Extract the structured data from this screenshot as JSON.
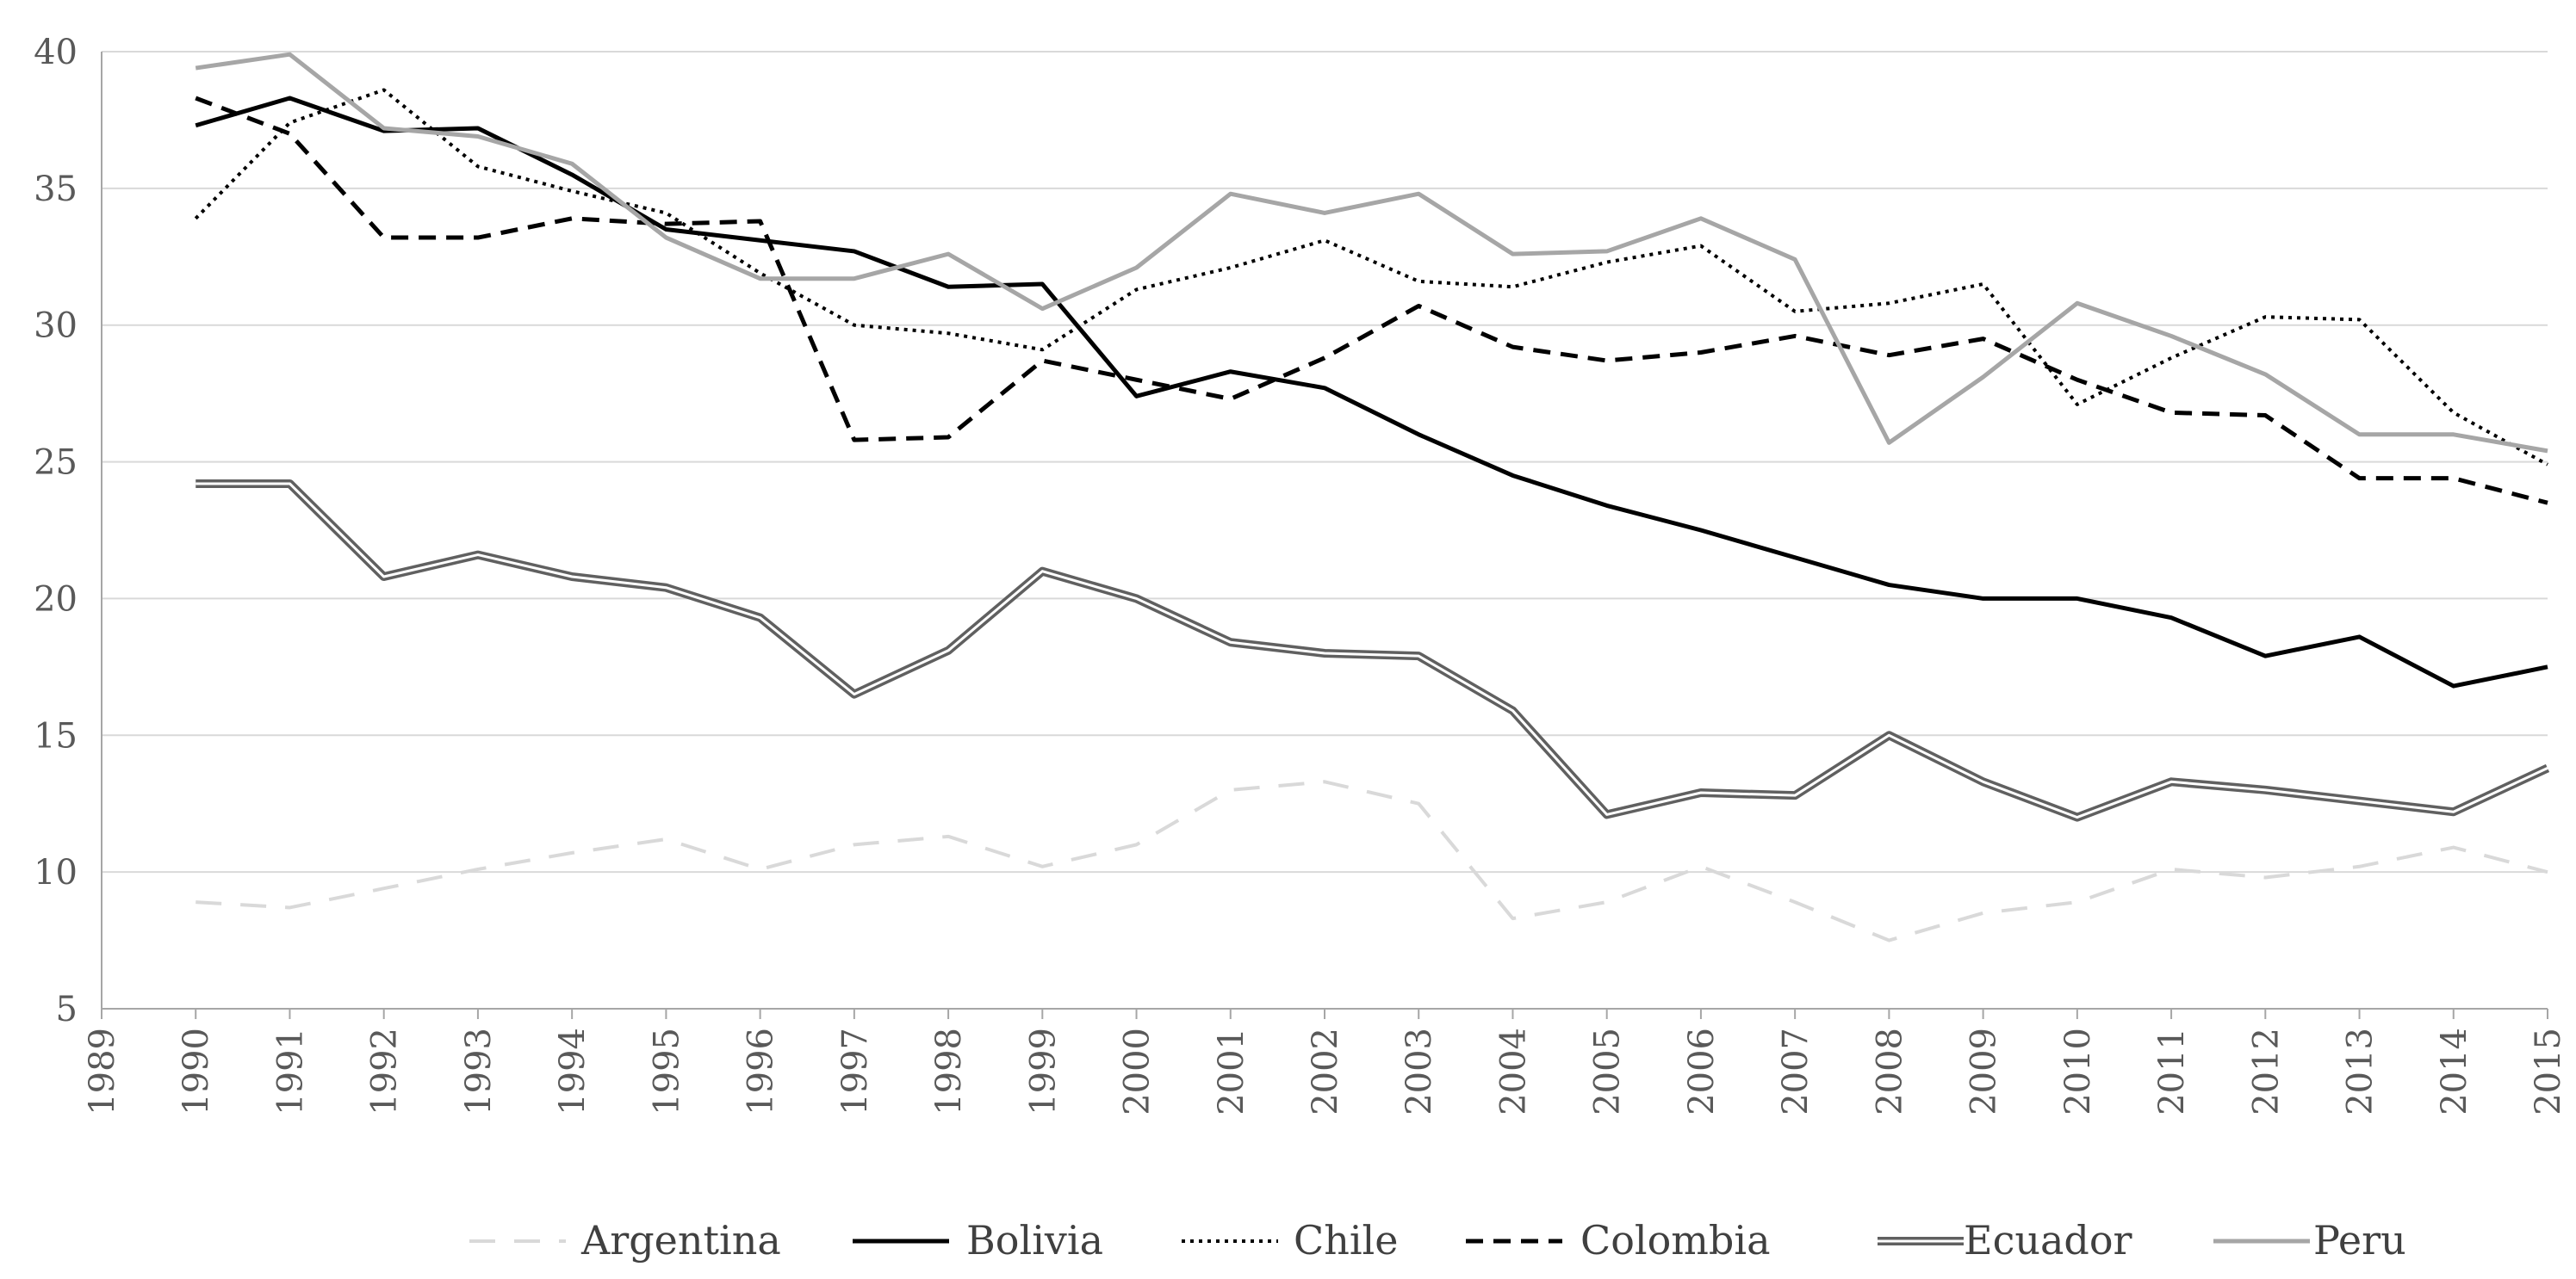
{
  "chart_data": {
    "type": "line",
    "title": "",
    "xlabel": "",
    "ylabel": "",
    "x": [
      1990,
      1991,
      1992,
      1993,
      1994,
      1995,
      1996,
      1997,
      1998,
      1999,
      2000,
      2001,
      2002,
      2003,
      2004,
      2005,
      2006,
      2007,
      2008,
      2009,
      2010,
      2011,
      2012,
      2013,
      2014,
      2015
    ],
    "xlim": [
      1989,
      2015
    ],
    "ylim": [
      5,
      40
    ],
    "x_tick_labels": [
      "1989",
      "1990",
      "1991",
      "1992",
      "1993",
      "1994",
      "1995",
      "1996",
      "1997",
      "1998",
      "1999",
      "2000",
      "2001",
      "2002",
      "2003",
      "2004",
      "2005",
      "2006",
      "2007",
      "2008",
      "2009",
      "2010",
      "2011",
      "2012",
      "2013",
      "2014",
      "2015"
    ],
    "y_tick_labels": [
      "5",
      "10",
      "15",
      "20",
      "25",
      "30",
      "35",
      "40"
    ],
    "grid": "horizontal",
    "legend_position": "bottom",
    "series": [
      {
        "name": "Argentina",
        "color": "#d9d9d9",
        "style": "long-dash",
        "values": [
          8.9,
          8.7,
          9.4,
          10.1,
          10.7,
          11.2,
          10.1,
          11.0,
          11.3,
          10.2,
          11.0,
          13.0,
          13.3,
          12.5,
          8.3,
          8.9,
          10.2,
          8.9,
          7.5,
          8.5,
          8.9,
          10.1,
          9.8,
          10.2,
          10.9,
          10.0
        ]
      },
      {
        "name": "Bolivia",
        "color": "#000000",
        "style": "solid",
        "values": [
          37.3,
          38.3,
          37.1,
          37.2,
          35.5,
          33.5,
          33.1,
          32.7,
          31.4,
          31.5,
          27.4,
          28.3,
          27.7,
          26.0,
          24.5,
          23.4,
          22.5,
          21.5,
          20.5,
          20.0,
          20.0,
          19.3,
          17.9,
          18.6,
          16.8,
          17.5
        ]
      },
      {
        "name": "Chile",
        "color": "#000000",
        "style": "dotted",
        "values": [
          33.9,
          37.4,
          38.6,
          35.8,
          34.9,
          34.1,
          31.9,
          30.0,
          29.7,
          29.1,
          31.3,
          32.1,
          33.1,
          31.6,
          31.4,
          32.3,
          32.9,
          30.5,
          30.8,
          31.5,
          27.1,
          28.8,
          30.3,
          30.2,
          26.8,
          24.9
        ]
      },
      {
        "name": "Colombia",
        "color": "#000000",
        "style": "dashed",
        "values": [
          38.3,
          37.0,
          33.2,
          33.2,
          33.9,
          33.7,
          33.8,
          25.8,
          25.9,
          28.7,
          28.0,
          27.3,
          28.8,
          30.7,
          29.2,
          28.7,
          29.0,
          29.6,
          28.9,
          29.5,
          28.0,
          26.8,
          26.7,
          24.4,
          24.4,
          23.5
        ]
      },
      {
        "name": "Ecuador",
        "color": "#606060",
        "style": "double",
        "values": [
          24.2,
          24.2,
          20.8,
          21.6,
          20.8,
          20.4,
          19.3,
          16.5,
          18.1,
          21.0,
          20.0,
          18.4,
          18.0,
          17.9,
          15.9,
          12.1,
          12.9,
          12.8,
          15.0,
          13.3,
          12.0,
          13.3,
          13.0,
          12.6,
          12.2,
          13.8
        ]
      },
      {
        "name": "Peru",
        "color": "#a6a6a6",
        "style": "solid",
        "values": [
          39.4,
          39.9,
          37.2,
          36.9,
          35.9,
          33.2,
          31.7,
          31.7,
          32.6,
          30.6,
          32.1,
          34.8,
          34.1,
          34.8,
          32.6,
          32.7,
          33.9,
          32.4,
          25.7,
          28.1,
          30.8,
          29.6,
          28.2,
          26.0,
          26.0,
          25.4
        ]
      }
    ]
  }
}
